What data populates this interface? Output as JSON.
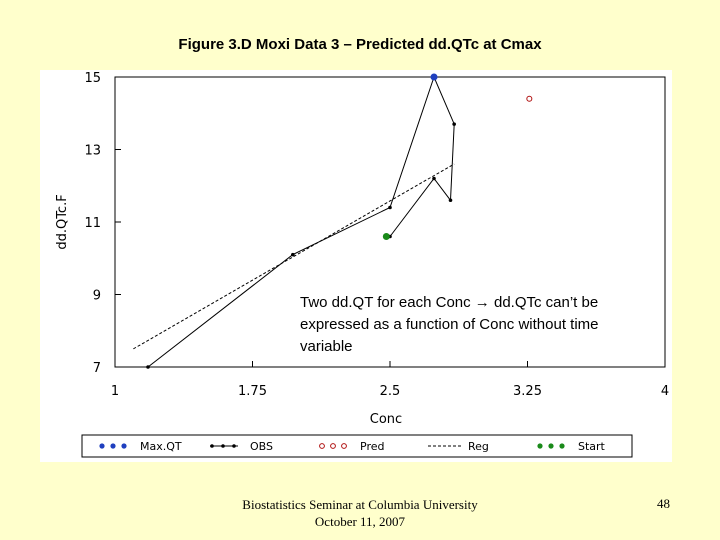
{
  "slide": {
    "title": "Figure 3.D Moxi Data 3 – Predicted dd.QTc at Cmax",
    "callout": "Two dd.QT for each Conc → dd.QTc can’t be expressed as  a function of Conc without time variable",
    "footer": "Biostatistics Seminar at Columbia University October 11, 2007",
    "page_number": "48"
  },
  "colors": {
    "background": "#FFFFCC",
    "max_qt": "#1f3fbf",
    "obs": "#000000",
    "pred": "#b01010",
    "reg": "#000000",
    "start": "#1a8a1a"
  },
  "chart_data": {
    "type": "line",
    "title": "",
    "xlabel": "Conc",
    "ylabel": "dd.QTc.F",
    "xlim": [
      1,
      4
    ],
    "ylim": [
      7,
      15
    ],
    "xticks": [
      "1",
      "1.75",
      "2.5",
      "3.25",
      "4"
    ],
    "yticks": [
      "7",
      "9",
      "11",
      "13",
      "15"
    ],
    "grid": false,
    "legend_position": "bottom",
    "series": [
      {
        "name": "Max.QT",
        "kind": "point",
        "marker": "dot",
        "points": [
          {
            "x": 2.74,
            "y": 15.0
          }
        ]
      },
      {
        "name": "OBS",
        "kind": "line-markers",
        "points": [
          {
            "x": 1.18,
            "y": 7.0
          },
          {
            "x": 1.97,
            "y": 10.1
          },
          {
            "x": 2.5,
            "y": 11.4
          },
          {
            "x": 2.74,
            "y": 15.0
          },
          {
            "x": 2.85,
            "y": 13.7
          },
          {
            "x": 2.83,
            "y": 11.6
          },
          {
            "x": 2.74,
            "y": 12.2
          },
          {
            "x": 2.5,
            "y": 10.6
          }
        ]
      },
      {
        "name": "Pred",
        "kind": "point",
        "marker": "open-circle",
        "points": [
          {
            "x": 3.26,
            "y": 14.4
          }
        ]
      },
      {
        "name": "Reg",
        "kind": "dashed-line",
        "points": [
          {
            "x": 1.1,
            "y": 7.5
          },
          {
            "x": 2.85,
            "y": 12.6
          }
        ]
      },
      {
        "name": "Start",
        "kind": "point",
        "marker": "dot",
        "points": [
          {
            "x": 2.48,
            "y": 10.6
          }
        ]
      }
    ]
  }
}
